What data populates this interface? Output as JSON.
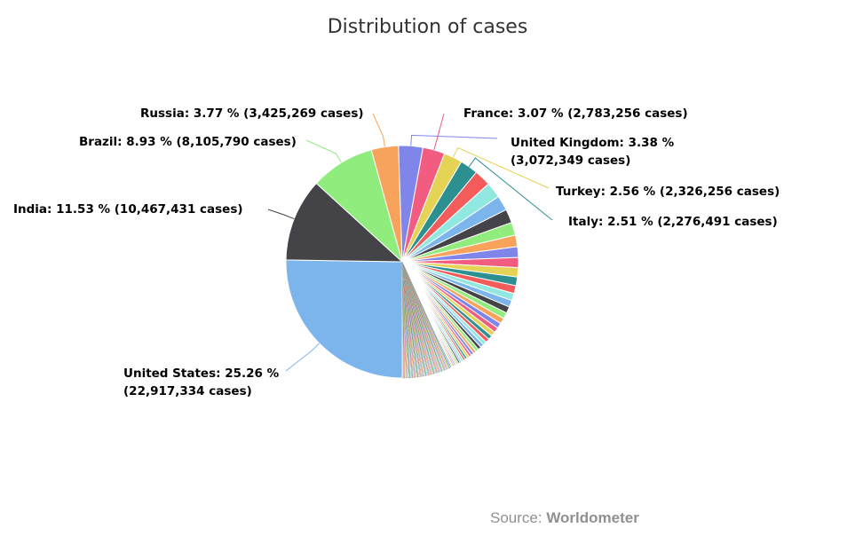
{
  "chart_data": {
    "type": "pie",
    "title": "Distribution of cases",
    "start": "bottom, clockwise",
    "series": [
      {
        "name": "United States",
        "percent": 25.26,
        "cases": "22,917,334",
        "label1": "United States: 25.26 %",
        "label2": "(22,917,334 cases)",
        "color": "#7cb5ec"
      },
      {
        "name": "India",
        "percent": 11.53,
        "cases": "10,467,431",
        "label1": "India: 11.53 % (10,467,431 cases)",
        "color": "#434348"
      },
      {
        "name": "Brazil",
        "percent": 8.93,
        "cases": "8,105,790",
        "label1": "Brazil: 8.93 % (8,105,790 cases)",
        "color": "#90ed7d"
      },
      {
        "name": "Russia",
        "percent": 3.77,
        "cases": "3,425,269",
        "label1": "Russia: 3.77 % (3,425,269 cases)",
        "color": "#f7a35c"
      },
      {
        "name": "United Kingdom",
        "percent": 3.38,
        "cases": "3,072,349",
        "label1": "United Kingdom: 3.38 %",
        "label2": "(3,072,349 cases)",
        "color": "#8085e9"
      },
      {
        "name": "France",
        "percent": 3.07,
        "cases": "2,783,256",
        "label1": "France: 3.07 % (2,783,256 cases)",
        "color": "#f15c80"
      },
      {
        "name": "Turkey",
        "percent": 2.56,
        "cases": "2,326,256",
        "label1": "Turkey: 2.56 % (2,326,256 cases)",
        "color": "#e4d354"
      },
      {
        "name": "Italy",
        "percent": 2.51,
        "cases": "2,276,491",
        "label1": "Italy: 2.51 % (2,276,491 cases)",
        "color": "#2b908f"
      }
    ],
    "unlabeled_percents": [
      2.3,
      2.2,
      2.1,
      1.9,
      1.8,
      1.6,
      1.5,
      1.4,
      1.3,
      1.2,
      1.1,
      1.0,
      0.95,
      0.9,
      0.85,
      0.8,
      0.75,
      0.7,
      0.65,
      0.6,
      0.55,
      0.5,
      0.5,
      0.45,
      0.45,
      0.4,
      0.4,
      0.35,
      0.35,
      0.3,
      0.3,
      0.3,
      0.25,
      0.25,
      0.25,
      0.2,
      0.2,
      0.2,
      0.2,
      0.2
    ],
    "palette": [
      "#7cb5ec",
      "#434348",
      "#90ed7d",
      "#f7a35c",
      "#8085e9",
      "#f15c80",
      "#e4d354",
      "#2b908f",
      "#f45b5b",
      "#91e8e1"
    ]
  },
  "source": {
    "prefix": "Source: ",
    "name": "Worldometer"
  }
}
